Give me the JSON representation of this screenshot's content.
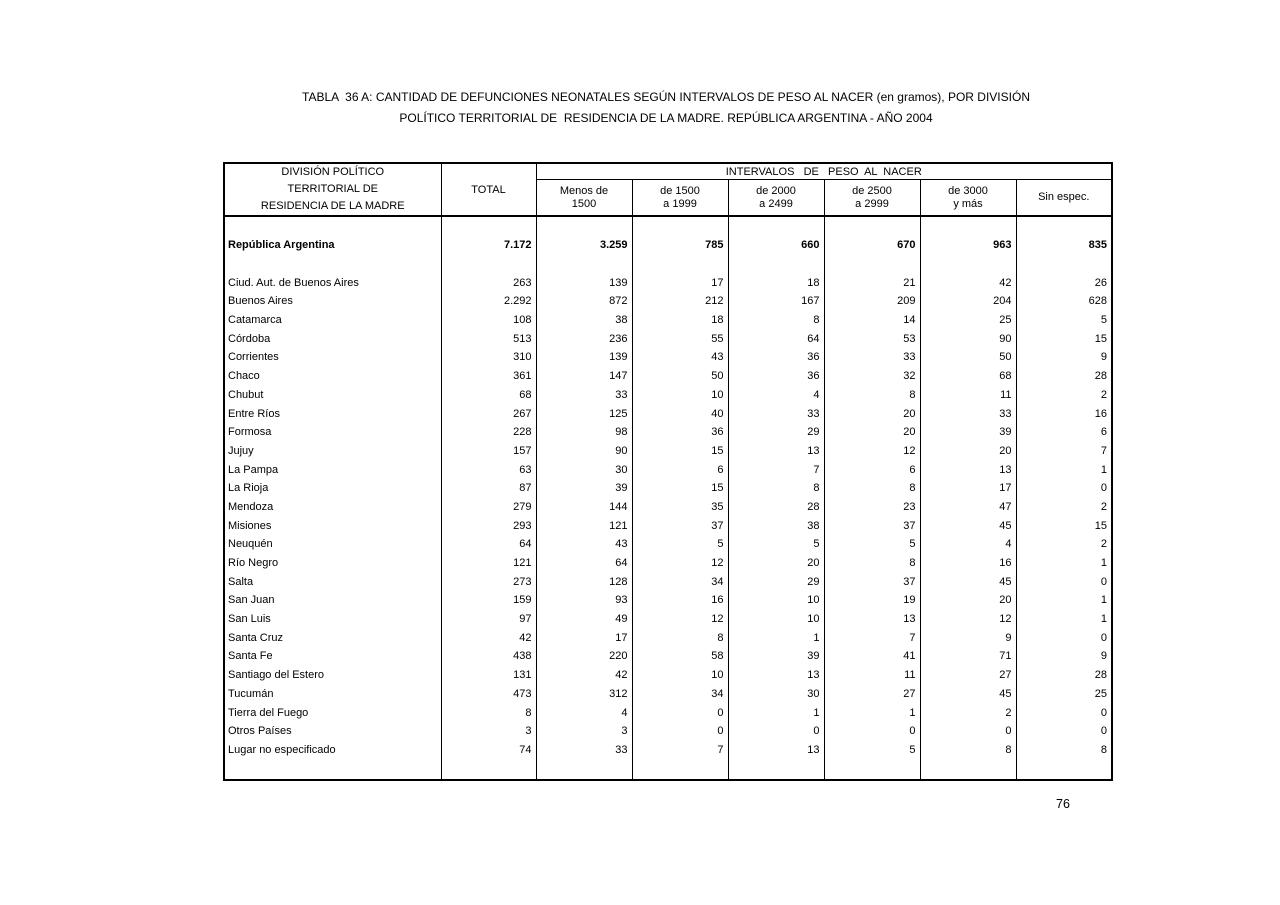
{
  "title": {
    "line1": "TABLA  36 A: CANTIDAD DE DEFUNCIONES NEONATALES SEGÚN INTERVALOS DE PESO AL NACER (en gramos), POR DIVISIÓN",
    "line2": "POLÍTICO TERRITORIAL DE  RESIDENCIA DE LA MADRE. REPÚBLICA ARGENTINA - AÑO 2004"
  },
  "table": {
    "header": {
      "division_lines": [
        "DIVISIÓN POLÍTICO",
        "TERRITORIAL DE",
        "RESIDENCIA DE LA MADRE"
      ],
      "total": "TOTAL",
      "intervals_title": "INTERVALOS   DE   PESO  AL  NACER",
      "intervals_columns": [
        {
          "line1": "Menos de",
          "line2": "1500"
        },
        {
          "line1": "de 1500",
          "line2": "a 1999"
        },
        {
          "line1": "de 2000",
          "line2": "a 2499"
        },
        {
          "line1": "de 2500",
          "line2": "a 2999"
        },
        {
          "line1": "de 3000",
          "line2": "y más"
        },
        {
          "line1": "Sin espec.",
          "line2": ""
        }
      ]
    },
    "total_row": {
      "label": "República Argentina",
      "values": [
        "7.172",
        "3.259",
        "785",
        "660",
        "670",
        "963",
        "835"
      ]
    },
    "rows": [
      {
        "label": "Ciud. Aut. de Buenos Aires",
        "values": [
          "263",
          "139",
          "17",
          "18",
          "21",
          "42",
          "26"
        ]
      },
      {
        "label": "Buenos Aires",
        "values": [
          "2.292",
          "872",
          "212",
          "167",
          "209",
          "204",
          "628"
        ]
      },
      {
        "label": "Catamarca",
        "values": [
          "108",
          "38",
          "18",
          "8",
          "14",
          "25",
          "5"
        ]
      },
      {
        "label": "Córdoba",
        "values": [
          "513",
          "236",
          "55",
          "64",
          "53",
          "90",
          "15"
        ]
      },
      {
        "label": "Corrientes",
        "values": [
          "310",
          "139",
          "43",
          "36",
          "33",
          "50",
          "9"
        ]
      },
      {
        "label": "Chaco",
        "values": [
          "361",
          "147",
          "50",
          "36",
          "32",
          "68",
          "28"
        ]
      },
      {
        "label": "Chubut",
        "values": [
          "68",
          "33",
          "10",
          "4",
          "8",
          "11",
          "2"
        ]
      },
      {
        "label": "Entre Ríos",
        "values": [
          "267",
          "125",
          "40",
          "33",
          "20",
          "33",
          "16"
        ]
      },
      {
        "label": "Formosa",
        "values": [
          "228",
          "98",
          "36",
          "29",
          "20",
          "39",
          "6"
        ]
      },
      {
        "label": "Jujuy",
        "values": [
          "157",
          "90",
          "15",
          "13",
          "12",
          "20",
          "7"
        ]
      },
      {
        "label": "La Pampa",
        "values": [
          "63",
          "30",
          "6",
          "7",
          "6",
          "13",
          "1"
        ]
      },
      {
        "label": "La Rioja",
        "values": [
          "87",
          "39",
          "15",
          "8",
          "8",
          "17",
          "0"
        ]
      },
      {
        "label": "Mendoza",
        "values": [
          "279",
          "144",
          "35",
          "28",
          "23",
          "47",
          "2"
        ]
      },
      {
        "label": "Misiones",
        "values": [
          "293",
          "121",
          "37",
          "38",
          "37",
          "45",
          "15"
        ]
      },
      {
        "label": "Neuquén",
        "values": [
          "64",
          "43",
          "5",
          "5",
          "5",
          "4",
          "2"
        ]
      },
      {
        "label": "Río Negro",
        "values": [
          "121",
          "64",
          "12",
          "20",
          "8",
          "16",
          "1"
        ]
      },
      {
        "label": "Salta",
        "values": [
          "273",
          "128",
          "34",
          "29",
          "37",
          "45",
          "0"
        ]
      },
      {
        "label": "San Juan",
        "values": [
          "159",
          "93",
          "16",
          "10",
          "19",
          "20",
          "1"
        ]
      },
      {
        "label": "San Luis",
        "values": [
          "97",
          "49",
          "12",
          "10",
          "13",
          "12",
          "1"
        ]
      },
      {
        "label": "Santa Cruz",
        "values": [
          "42",
          "17",
          "8",
          "1",
          "7",
          "9",
          "0"
        ]
      },
      {
        "label": "Santa Fe",
        "values": [
          "438",
          "220",
          "58",
          "39",
          "41",
          "71",
          "9"
        ]
      },
      {
        "label": "Santiago del Estero",
        "values": [
          "131",
          "42",
          "10",
          "13",
          "11",
          "27",
          "28"
        ]
      },
      {
        "label": "Tucumán",
        "values": [
          "473",
          "312",
          "34",
          "30",
          "27",
          "45",
          "25"
        ]
      },
      {
        "label": "Tierra del Fuego",
        "values": [
          "8",
          "4",
          "0",
          "1",
          "1",
          "2",
          "0"
        ]
      },
      {
        "label": "Otros Países",
        "values": [
          "3",
          "3",
          "0",
          "0",
          "0",
          "0",
          "0"
        ]
      },
      {
        "label": "Lugar no especificado",
        "values": [
          "74",
          "33",
          "7",
          "13",
          "5",
          "8",
          "8"
        ]
      }
    ]
  },
  "footer": {
    "page_number": "76"
  }
}
